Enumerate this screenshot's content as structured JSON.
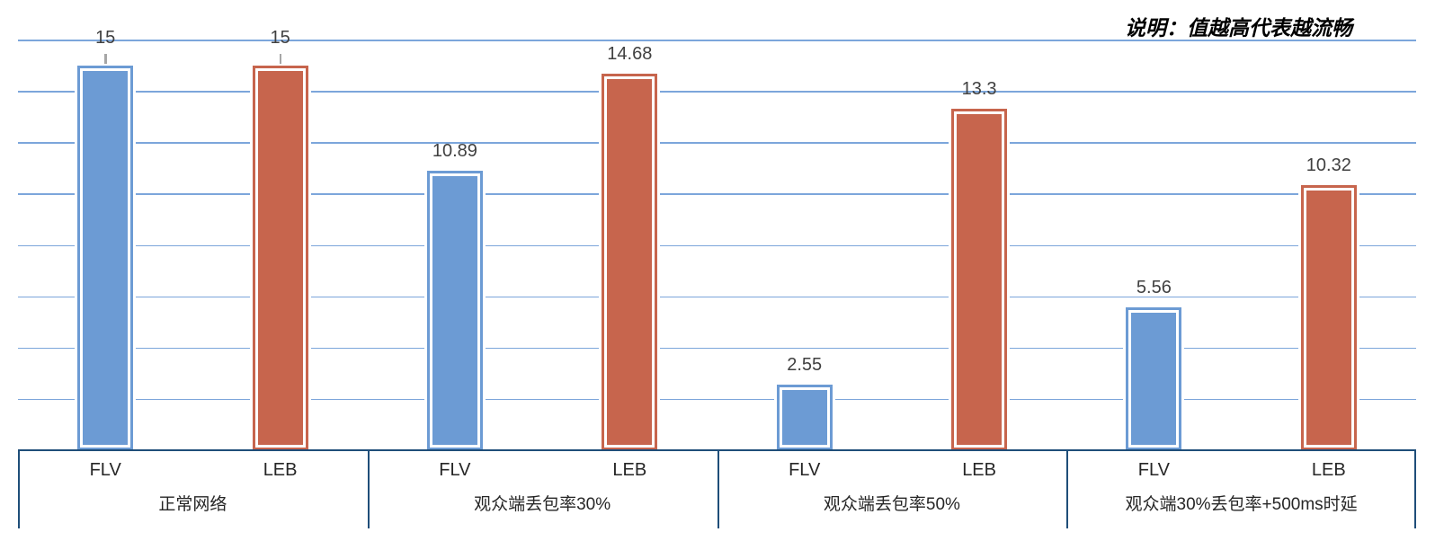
{
  "chart_data": {
    "type": "bar",
    "annotation": "说明：值越高代表越流畅",
    "categories": [
      "正常网络",
      "观众端丢包率30%",
      "观众端丢包率50%",
      "观众端30%丢包率+500ms时延"
    ],
    "series": [
      {
        "name": "FLV",
        "color": "#6C9BD4",
        "values": [
          15,
          10.89,
          2.55,
          5.56
        ]
      },
      {
        "name": "LEB",
        "color": "#C7654D",
        "values": [
          15,
          14.68,
          13.3,
          10.32
        ]
      }
    ],
    "ylim": [
      0,
      16
    ],
    "grid_step": 2,
    "grid": true,
    "legend": "none",
    "xlabel": "",
    "ylabel": ""
  },
  "colors": {
    "gridline": "#7CA6DB",
    "axis": "#1F4E79",
    "value_label": "#404040",
    "category_label": "#262626",
    "leader_tick": "#A6A6A6"
  }
}
